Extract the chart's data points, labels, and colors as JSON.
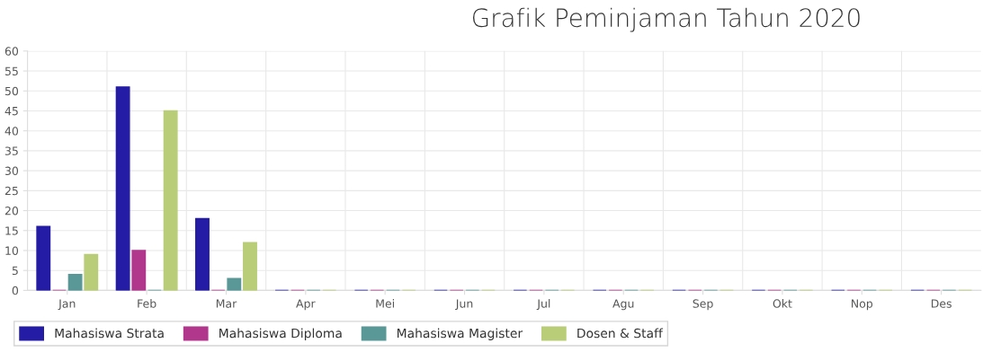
{
  "chart_data": {
    "type": "bar",
    "title": "Grafik Peminjaman Tahun 2020",
    "categories": [
      "Jan",
      "Feb",
      "Mar",
      "Apr",
      "Mei",
      "Jun",
      "Jul",
      "Agu",
      "Sep",
      "Okt",
      "Nop",
      "Des"
    ],
    "series": [
      {
        "name": "Mahasiswa Strata",
        "color": "#241ca4",
        "values": [
          16,
          51,
          18,
          0,
          0,
          0,
          0,
          0,
          0,
          0,
          0,
          0
        ]
      },
      {
        "name": "Mahasiswa Diploma",
        "color": "#b0378c",
        "values": [
          0,
          10,
          0,
          0,
          0,
          0,
          0,
          0,
          0,
          0,
          0,
          0
        ]
      },
      {
        "name": "Mahasiswa Magister",
        "color": "#5a9797",
        "values": [
          4,
          0,
          3,
          0,
          0,
          0,
          0,
          0,
          0,
          0,
          0,
          0
        ]
      },
      {
        "name": "Dosen & Staff",
        "color": "#b9cd78",
        "values": [
          9,
          45,
          12,
          0,
          0,
          0,
          0,
          0,
          0,
          0,
          0,
          0
        ]
      }
    ],
    "ylim": [
      0,
      60
    ],
    "yticks": [
      0,
      5,
      10,
      15,
      20,
      25,
      30,
      35,
      40,
      45,
      50,
      55,
      60
    ],
    "grid": true,
    "legend": "bottom"
  }
}
